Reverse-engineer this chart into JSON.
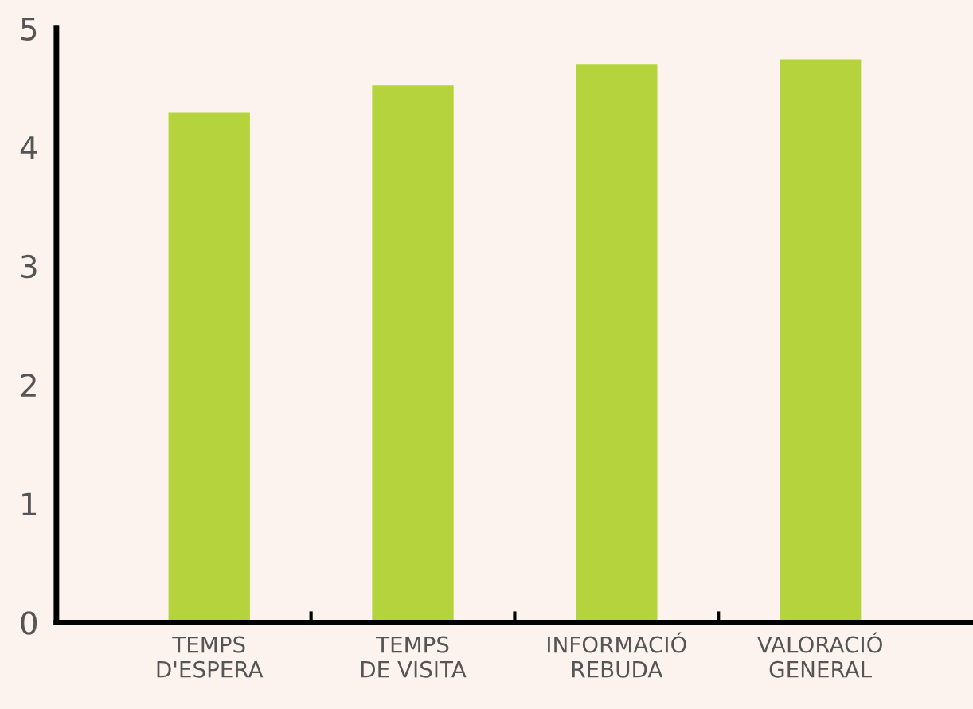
{
  "chart_data": {
    "type": "bar",
    "categories": [
      "TEMPS\nD'ESPERA",
      "TEMPS\nDE VISITA",
      "INFORMACIÓ\nREBUDA",
      "VALORACIÓ\nGENERAL"
    ],
    "values": [
      4.29,
      4.52,
      4.7,
      4.74
    ],
    "color": "#b5d33d",
    "ylim": [
      0,
      5
    ],
    "yticks": [
      0,
      1,
      2,
      3,
      4,
      5
    ],
    "grid": false,
    "legend": false
  }
}
